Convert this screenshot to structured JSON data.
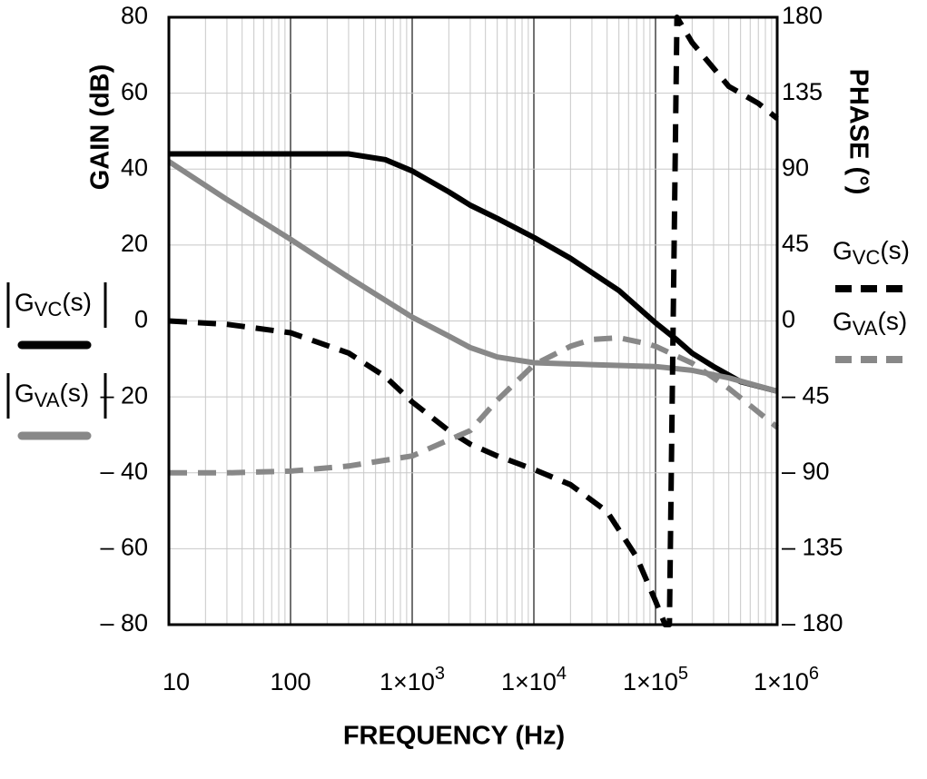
{
  "chart_data": {
    "type": "line",
    "title": "",
    "xlabel": "FREQUENCY (Hz)",
    "ylabel_left": "GAIN (dB)",
    "ylabel_right": "PHASE (°)",
    "xscale": "log",
    "xlim": [
      10,
      1000000
    ],
    "ylim_left": [
      -80,
      80
    ],
    "ylim_right": [
      -180,
      180
    ],
    "grid": true,
    "x_ticks": [
      {
        "value": 10,
        "label": "10"
      },
      {
        "value": 100,
        "label": "100"
      },
      {
        "value": 1000,
        "base": "1×10",
        "exp": "3"
      },
      {
        "value": 10000,
        "base": "1×10",
        "exp": "4"
      },
      {
        "value": 100000,
        "base": "1×10",
        "exp": "5"
      },
      {
        "value": 1000000,
        "base": "1×10",
        "exp": "6"
      }
    ],
    "left_ticks": [
      {
        "value": 80,
        "label": "80"
      },
      {
        "value": 60,
        "label": "60"
      },
      {
        "value": 40,
        "label": "40"
      },
      {
        "value": 20,
        "label": "20"
      },
      {
        "value": 0,
        "label": "0"
      },
      {
        "value": -20,
        "label": "– 20"
      },
      {
        "value": -40,
        "label": "– 40"
      },
      {
        "value": -60,
        "label": "– 60"
      },
      {
        "value": -80,
        "label": "– 80"
      }
    ],
    "right_ticks": [
      {
        "value": 180,
        "label": "180"
      },
      {
        "value": 135,
        "label": "135"
      },
      {
        "value": 90,
        "label": "90"
      },
      {
        "value": 45,
        "label": "45"
      },
      {
        "value": 0,
        "label": "0"
      },
      {
        "value": -45,
        "label": "– 45"
      },
      {
        "value": -90,
        "label": "– 90"
      },
      {
        "value": -135,
        "label": "– 135"
      },
      {
        "value": -180,
        "label": "– 180"
      }
    ],
    "series": [
      {
        "name": "|GVC(s)| gain",
        "axis": "left",
        "style": "solid",
        "color": "#000000",
        "points": [
          [
            10,
            44
          ],
          [
            100,
            44
          ],
          [
            300,
            44
          ],
          [
            600,
            42.5
          ],
          [
            1000,
            39.5
          ],
          [
            2000,
            34
          ],
          [
            3000,
            30.5
          ],
          [
            5000,
            27
          ],
          [
            10000,
            22
          ],
          [
            20000,
            16.5
          ],
          [
            50000,
            8
          ],
          [
            100000,
            -0.5
          ],
          [
            150000,
            -5
          ],
          [
            200000,
            -8.5
          ],
          [
            300000,
            -12
          ],
          [
            500000,
            -16
          ],
          [
            1000000,
            -18.5
          ]
        ]
      },
      {
        "name": "|GVA(s)| gain",
        "axis": "left",
        "style": "solid",
        "color": "#888888",
        "points": [
          [
            10,
            42
          ],
          [
            30,
            32
          ],
          [
            100,
            21.5
          ],
          [
            300,
            11.5
          ],
          [
            1000,
            1
          ],
          [
            2000,
            -4
          ],
          [
            3000,
            -7
          ],
          [
            5000,
            -9.5
          ],
          [
            10000,
            -11
          ],
          [
            30000,
            -11.5
          ],
          [
            100000,
            -12
          ],
          [
            200000,
            -13
          ],
          [
            400000,
            -15
          ],
          [
            1000000,
            -18.5
          ]
        ]
      },
      {
        "name": "GVC(s) phase",
        "axis": "right",
        "style": "dashed",
        "color": "#000000",
        "points": [
          [
            10,
            0
          ],
          [
            30,
            -2
          ],
          [
            100,
            -7
          ],
          [
            300,
            -19
          ],
          [
            600,
            -33
          ],
          [
            1000,
            -48
          ],
          [
            2000,
            -65
          ],
          [
            3000,
            -73
          ],
          [
            5000,
            -80
          ],
          [
            10000,
            -88
          ],
          [
            20000,
            -97
          ],
          [
            40000,
            -113
          ],
          [
            70000,
            -140
          ],
          [
            100000,
            -166
          ],
          [
            120000,
            -180
          ],
          [
            130000,
            -180
          ],
          [
            150000,
            180
          ],
          [
            200000,
            165
          ],
          [
            400000,
            139
          ],
          [
            700000,
            129
          ],
          [
            1000000,
            120
          ]
        ]
      },
      {
        "name": "GVA(s) phase",
        "axis": "right",
        "style": "dashed",
        "color": "#888888",
        "points": [
          [
            10,
            -90
          ],
          [
            30,
            -90
          ],
          [
            100,
            -89
          ],
          [
            300,
            -86
          ],
          [
            1000,
            -80
          ],
          [
            3000,
            -65
          ],
          [
            5000,
            -47
          ],
          [
            10000,
            -26
          ],
          [
            20000,
            -15
          ],
          [
            30000,
            -11
          ],
          [
            50000,
            -10
          ],
          [
            80000,
            -13
          ],
          [
            100000,
            -15
          ],
          [
            200000,
            -25
          ],
          [
            400000,
            -40
          ],
          [
            1000000,
            -63
          ]
        ]
      }
    ],
    "legends": {
      "left": [
        {
          "prefix": "G",
          "sub": "VC",
          "suffix": "(s)",
          "bars": true,
          "style": "solid",
          "color": "#000000"
        },
        {
          "prefix": "G",
          "sub": "VA",
          "suffix": "(s)",
          "bars": true,
          "style": "solid",
          "color": "#888888"
        }
      ],
      "right": [
        {
          "prefix": "G",
          "sub": "VC",
          "suffix": "(s)",
          "bars": false,
          "style": "dashed",
          "color": "#000000"
        },
        {
          "prefix": "G",
          "sub": "VA",
          "suffix": "(s)",
          "bars": false,
          "style": "dashed",
          "color": "#888888"
        }
      ]
    }
  }
}
